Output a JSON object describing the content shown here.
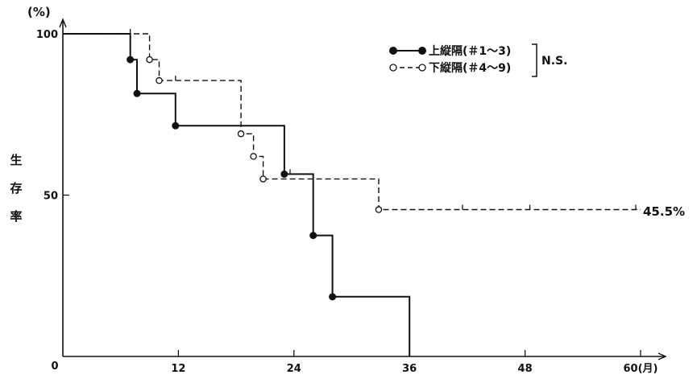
{
  "chart_data": {
    "type": "line",
    "step": true,
    "y_unit_label": "(%)",
    "ylabel": "生\n存\n率",
    "x_unit_label": "(月)",
    "x_ticks": [
      12,
      24,
      36,
      48,
      60
    ],
    "x_tick_labels": [
      "12",
      "24",
      "36",
      "48",
      "60(月)"
    ],
    "y_ticks": [
      0,
      50,
      100
    ],
    "y_tick_labels": [
      "0",
      "50",
      "100"
    ],
    "xlim": [
      0,
      62
    ],
    "ylim": [
      0,
      100
    ],
    "grid": false,
    "legend_position": "top-right",
    "legend_bracket_label": "N.S.",
    "end_annotation": "45.5%",
    "series": [
      {
        "name": "上縦隔(＃1～3)",
        "style": "solid",
        "marker": "filled-circle",
        "color": "#111111",
        "steps": [
          [
            0,
            100
          ],
          [
            7,
            100
          ],
          [
            7,
            92
          ],
          [
            7.7,
            92
          ],
          [
            7.7,
            81.5
          ],
          [
            11.7,
            81.5
          ],
          [
            11.7,
            71.5
          ],
          [
            23,
            71.5
          ],
          [
            23,
            56.5
          ],
          [
            26,
            56.5
          ],
          [
            26,
            37.5
          ],
          [
            28,
            37.5
          ],
          [
            28,
            18.5
          ],
          [
            36,
            18.5
          ],
          [
            36,
            0
          ]
        ],
        "events": [
          [
            7,
            92
          ],
          [
            7.7,
            81.5
          ],
          [
            11.7,
            71.5
          ],
          [
            23,
            56.5
          ],
          [
            26,
            37.5
          ],
          [
            28,
            18.5
          ]
        ]
      },
      {
        "name": "下縦隔(＃4～9)",
        "style": "dashed",
        "marker": "open-circle",
        "color": "#111111",
        "steps": [
          [
            0,
            100
          ],
          [
            9,
            100
          ],
          [
            9,
            92
          ],
          [
            10,
            92
          ],
          [
            10,
            85.5
          ],
          [
            18.5,
            85.5
          ],
          [
            18.5,
            69
          ],
          [
            19.8,
            69
          ],
          [
            19.8,
            62
          ],
          [
            20.8,
            62
          ],
          [
            20.8,
            55
          ],
          [
            32.8,
            55
          ],
          [
            32.8,
            45.5
          ],
          [
            60,
            45.5
          ]
        ],
        "events": [
          [
            9,
            92
          ],
          [
            10,
            85.5
          ],
          [
            18.5,
            69
          ],
          [
            19.8,
            62
          ],
          [
            20.8,
            55
          ],
          [
            32.8,
            45.5
          ]
        ],
        "censored": [
          [
            7,
            100
          ],
          [
            11.7,
            85.5
          ],
          [
            23.6,
            56.5
          ],
          [
            41.5,
            45.5
          ],
          [
            48.5,
            45.5
          ],
          [
            59.5,
            45.5
          ]
        ]
      }
    ]
  }
}
